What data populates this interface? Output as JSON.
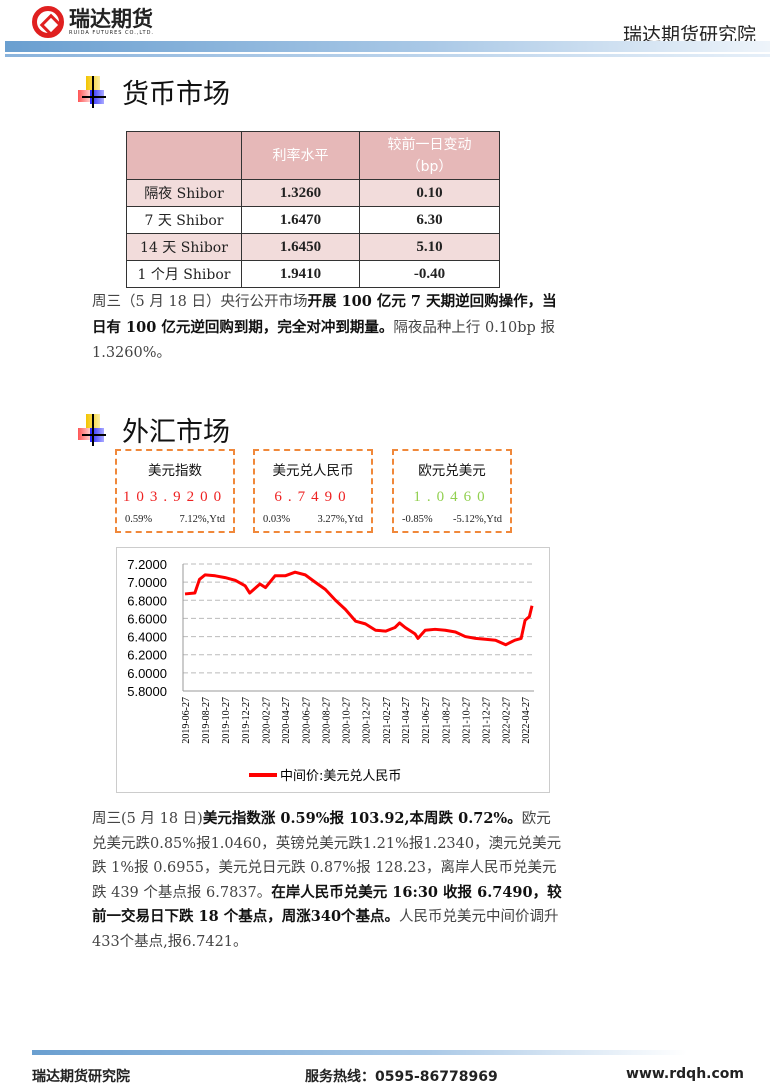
{
  "header": {
    "logo_name": "瑞达期货",
    "logo_sub": "RUIDA FUTURES CO.,LTD.",
    "institute": "瑞达期货研究院"
  },
  "money": {
    "title": "货币市场",
    "table": {
      "headers": [
        "",
        "利率水平",
        "较前一日变动",
        "（bp）"
      ],
      "rows": [
        [
          "隔夜 Shibor",
          "1.3260",
          "0.10"
        ],
        [
          "7 天 Shibor",
          "1.6470",
          "6.30"
        ],
        [
          "14 天 Shibor",
          "1.6450",
          "5.10"
        ],
        [
          "1 个月 Shibor",
          "1.9410",
          "-0.40"
        ]
      ]
    },
    "paragraph": [
      {
        "t": "周三（5 月 18 日）央行公开市场",
        "b": false
      },
      {
        "t": "开展 100 亿元 7 天期逆回购操作，当日有 100 亿元逆回购到期，完全对冲到期量。",
        "b": true
      },
      {
        "t": "隔夜品种上行 0.10bp 报 1.3260%。",
        "b": false
      }
    ]
  },
  "fx": {
    "title": "外汇市场",
    "cards": [
      {
        "name": "美元指数",
        "value": "103.9200",
        "change": "0.59%",
        "ytd": "7.12%,Ytd",
        "color": "#ee2222"
      },
      {
        "name": "美元兑人民币",
        "value": "6.7490",
        "change": "0.03%",
        "ytd": "3.27%,Ytd",
        "color": "#ee2222"
      },
      {
        "name": "欧元兑美元",
        "value": "1.0460",
        "change": "-0.85%",
        "ytd": "-5.12%,Ytd",
        "color": "#92d050"
      }
    ],
    "paragraph": [
      {
        "t": "周三(5 月 18 日)",
        "b": false
      },
      {
        "t": "美元指数涨 0.59%报 103.92,本周跌 0.72%。",
        "b": true
      },
      {
        "t": "欧元兑美元跌0.85%报1.0460，英镑兑美元跌1.21%报1.2340，澳元兑美元跌 1%报 0.6955，美元兑日元跌 0.87%报 128.23，离岸人民币兑美元跌 439 个基点报 6.7837。",
        "b": false
      },
      {
        "t": "在岸人民币兑美元 16:30 收报 6.7490，较前一交易日下跌 18 个基点，周涨340个基点。",
        "b": true
      },
      {
        "t": "人民币兑美元中间价调升433个基点,报6.7421。",
        "b": false
      }
    ]
  },
  "chart_data": {
    "type": "line",
    "title": "",
    "xlabel": "",
    "ylabel": "",
    "ylim": [
      5.8,
      7.2
    ],
    "grid": "horizontal dashed",
    "legend": "bottom",
    "color": "#ff0000",
    "yticks": [
      "7.2000",
      "7.0000",
      "6.8000",
      "6.6000",
      "6.4000",
      "6.2000",
      "6.0000",
      "5.8000"
    ],
    "xticks": [
      "2019-06-27",
      "2019-08-27",
      "2019-10-27",
      "2019-12-27",
      "2020-02-27",
      "2020-04-27",
      "2020-06-27",
      "2020-08-27",
      "2020-10-27",
      "2020-12-27",
      "2021-02-27",
      "2021-04-27",
      "2021-06-27",
      "2021-08-27",
      "2021-10-27",
      "2021-12-27",
      "2022-02-27",
      "2022-04-27"
    ],
    "series": [
      {
        "name": "中间价:美元兑人民币",
        "x": [
          "2019-06-27",
          "2019-07-27",
          "2019-08-10",
          "2019-08-27",
          "2019-09-27",
          "2019-10-27",
          "2019-11-27",
          "2019-12-27",
          "2020-01-10",
          "2020-02-10",
          "2020-02-27",
          "2020-03-27",
          "2020-04-27",
          "2020-05-27",
          "2020-06-27",
          "2020-07-27",
          "2020-08-27",
          "2020-09-27",
          "2020-10-27",
          "2020-11-27",
          "2020-12-27",
          "2021-01-27",
          "2021-02-27",
          "2021-03-27",
          "2021-04-10",
          "2021-04-27",
          "2021-05-27",
          "2021-06-05",
          "2021-06-27",
          "2021-07-27",
          "2021-08-27",
          "2021-09-27",
          "2021-10-27",
          "2021-11-27",
          "2021-12-27",
          "2022-01-27",
          "2022-02-27",
          "2022-03-27",
          "2022-04-15",
          "2022-04-27",
          "2022-05-10",
          "2022-05-18"
        ],
        "y": [
          6.87,
          6.88,
          7.03,
          7.08,
          7.07,
          7.05,
          7.02,
          6.96,
          6.88,
          6.98,
          6.94,
          7.07,
          7.07,
          7.11,
          7.08,
          7.0,
          6.92,
          6.8,
          6.7,
          6.57,
          6.54,
          6.47,
          6.46,
          6.5,
          6.55,
          6.5,
          6.43,
          6.38,
          6.47,
          6.48,
          6.47,
          6.45,
          6.4,
          6.38,
          6.37,
          6.36,
          6.31,
          6.36,
          6.38,
          6.58,
          6.62,
          6.74
        ]
      }
    ]
  },
  "footer": {
    "institute": "瑞达期货研究院",
    "hotline": "服务热线：0595-86778969",
    "website": "www.rdqh.com"
  }
}
